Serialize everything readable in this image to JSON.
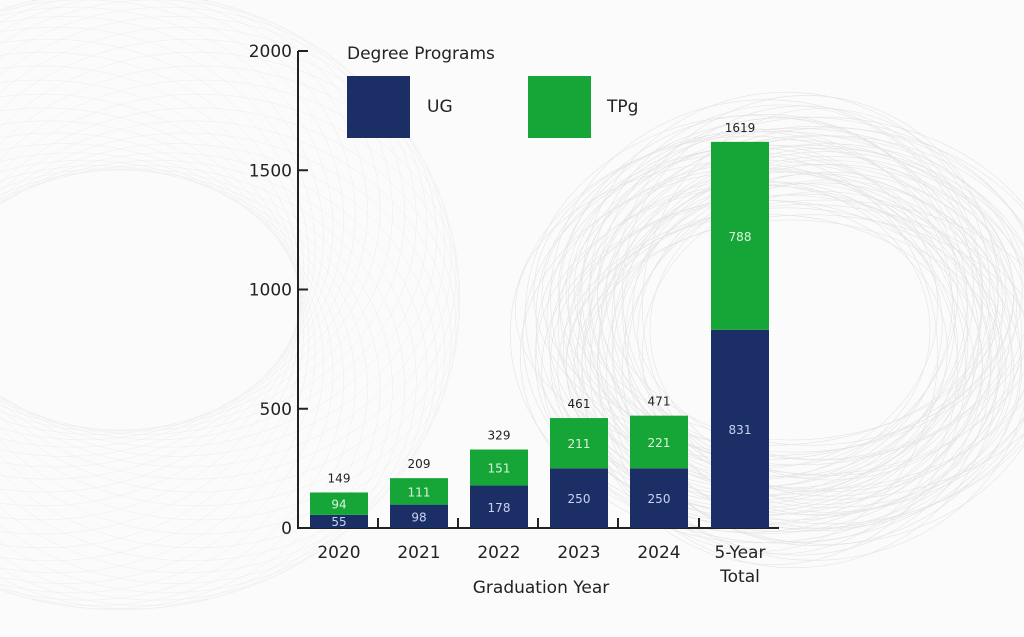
{
  "chart_data": {
    "type": "bar",
    "stacked": true,
    "title": "",
    "xlabel": "Graduation Year",
    "ylabel": "",
    "ylim": [
      0,
      2000
    ],
    "yticks": [
      0,
      500,
      1000,
      1500,
      2000
    ],
    "categories": [
      "2020",
      "2021",
      "2022",
      "2023",
      "2024",
      "5-Year Total"
    ],
    "series": [
      {
        "name": "UG",
        "color": "#1c2e66",
        "label_color": "#c9d3f0",
        "values": [
          55,
          98,
          178,
          250,
          250,
          831
        ]
      },
      {
        "name": "TPg",
        "color": "#16a637",
        "label_color": "#d8f5dc",
        "values": [
          94,
          111,
          151,
          211,
          221,
          788
        ]
      }
    ],
    "totals": [
      149,
      209,
      329,
      461,
      471,
      1619
    ],
    "legend": {
      "title": "Degree Programs",
      "placement": "top-left"
    },
    "grid": false
  }
}
